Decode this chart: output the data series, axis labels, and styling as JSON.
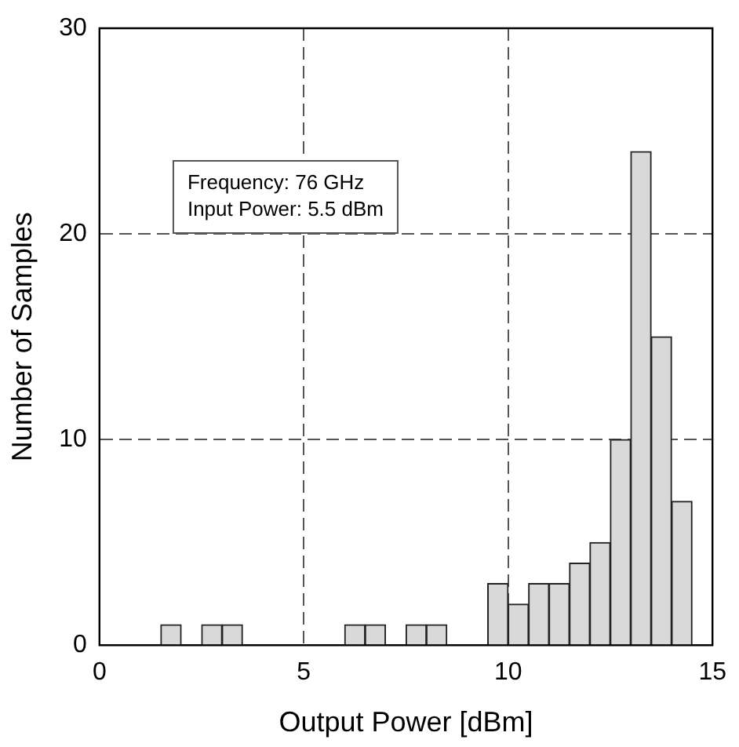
{
  "chart_data": {
    "type": "histogram",
    "xlabel": "Output Power [dBm]",
    "ylabel": "Number of Samples",
    "bins": [
      1.5,
      2,
      2.5,
      3,
      3.5,
      4,
      4.5,
      5,
      5.5,
      6,
      6.5,
      7,
      7.5,
      8,
      8.5,
      9,
      9.5,
      10,
      10.5,
      11,
      11.5,
      12,
      12.5,
      13,
      13.5,
      14,
      14.5
    ],
    "values": [
      1,
      0,
      1,
      1,
      0,
      0,
      0,
      0,
      0,
      1,
      1,
      0,
      1,
      1,
      0,
      0,
      3,
      2,
      3,
      3,
      4,
      5,
      10,
      24,
      15,
      7
    ],
    "color": "#d9d9d9",
    "xlim": [
      0,
      15
    ],
    "xticks": [
      0,
      5,
      10,
      15
    ],
    "ylim": [
      0,
      30
    ],
    "yticks": [
      0,
      10,
      20,
      30
    ],
    "grid": true,
    "annotations": [
      "Frequency: 76 GHz",
      "Input Power: 5.5 dBm"
    ]
  }
}
